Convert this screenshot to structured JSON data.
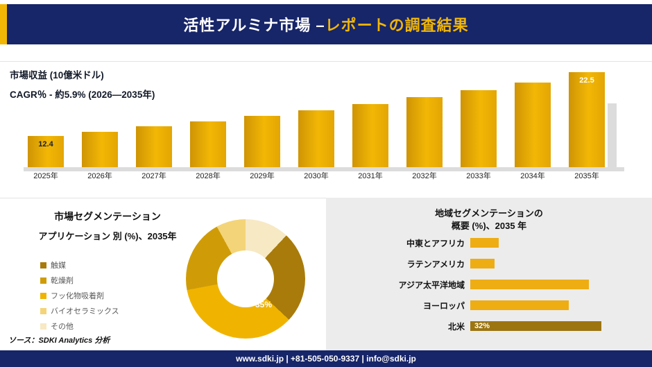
{
  "header": {
    "title_white": "活性アルミナ市場 –",
    "title_yellow": "レポートの調査結果"
  },
  "colors": {
    "navy": "#172569",
    "gold": "#f2b705",
    "panel_gray": "#ececec",
    "north_america_bar": "#9c7511",
    "region_bar": "#eead13"
  },
  "chart_data": [
    {
      "type": "bar",
      "title": "市場収益 (10億米ドル)",
      "subtitle": "CAGR％ - 約5.9% (2026―2035年)",
      "categories": [
        "2025年",
        "2026年",
        "2027年",
        "2028年",
        "2029年",
        "2030年",
        "2031年",
        "2032年",
        "2033年",
        "2034年",
        "2035年"
      ],
      "values": [
        12.4,
        13.1,
        13.9,
        14.7,
        15.6,
        16.5,
        17.5,
        18.5,
        19.6,
        20.8,
        22.5
      ],
      "value_labels": [
        "12.4",
        "",
        "",
        "",
        "",
        "",
        "",
        "",
        "",
        "",
        "22.5"
      ],
      "bar_gradient": [
        "#cf9404",
        "#f2b705"
      ],
      "legend_position": "none",
      "grid": false
    },
    {
      "type": "pie",
      "title": "市場セグメンテーション",
      "subtitle": "アプリケーション 別 (%)、2035年",
      "donut": true,
      "segments": [
        {
          "label": "触媒",
          "value": 25,
          "color": "#a87b0b"
        },
        {
          "label": "乾燥剤",
          "value": 20,
          "color": "#cf9c08"
        },
        {
          "label": "フッ化物吸着剤",
          "value": 35,
          "color": "#f0b400"
        },
        {
          "label": "バイオセラミックス",
          "value": 8,
          "color": "#f3d478"
        },
        {
          "label": "その他",
          "value": 12,
          "color": "#f7e9c4"
        }
      ],
      "shown_label": "35%",
      "render_order": [
        4,
        0,
        2,
        1,
        3
      ],
      "legend_position": "left"
    },
    {
      "type": "bar",
      "orientation": "horizontal",
      "title_line1": "地域セグメンテーションの",
      "title_line2": "概要 (%)、2035 年",
      "categories": [
        "中東とアフリカ",
        "ラテンアメリカ",
        "アジア太平洋地域",
        "ヨーロッパ",
        "北米"
      ],
      "values": [
        7,
        6,
        29,
        24,
        32
      ],
      "value_labels": [
        "",
        "",
        "",
        "",
        "32%"
      ],
      "colors": [
        "#eead13",
        "#eead13",
        "#eead13",
        "#eead13",
        "#9c7511"
      ],
      "grid": false
    }
  ],
  "source": {
    "text": "ソース：SDKI Analytics 分析"
  },
  "footer": {
    "text": "www.sdki.jp | +81-505-050-9337 | info@sdki.jp"
  }
}
